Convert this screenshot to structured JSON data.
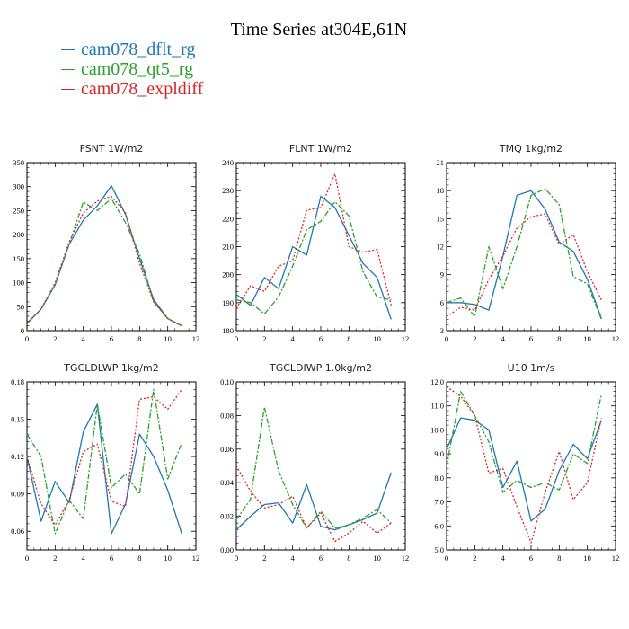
{
  "title": "Time Series at304E,61N",
  "legend": [
    {
      "name": "cam078_dflt_rg",
      "color": "#1f77b4"
    },
    {
      "name": "cam078_qt5_rg",
      "color": "#2ca02c"
    },
    {
      "name": "cam078_expldiff",
      "color": "#d62728"
    }
  ],
  "chart_data": [
    {
      "type": "line",
      "title": "FSNT  1W/m2",
      "x": [
        0,
        1,
        2,
        3,
        4,
        5,
        6,
        7,
        8,
        9,
        10,
        11
      ],
      "xlim": [
        0,
        12
      ],
      "xticks": [
        "0",
        "2",
        "4",
        "6",
        "8",
        "10",
        "12"
      ],
      "ylim": [
        0,
        350
      ],
      "yticks": [
        "0",
        "50",
        "100",
        "150",
        "200",
        "250",
        "300",
        "350"
      ],
      "series": [
        {
          "name": "cam078_dflt_rg",
          "values": [
            15,
            45,
            95,
            180,
            230,
            260,
            302,
            242,
            150,
            65,
            25,
            10
          ]
        },
        {
          "name": "cam078_qt5_rg",
          "values": [
            15,
            45,
            95,
            180,
            268,
            250,
            275,
            225,
            160,
            60,
            25,
            10
          ]
        },
        {
          "name": "cam078_expldiff",
          "values": [
            15,
            45,
            100,
            185,
            245,
            270,
            280,
            245,
            140,
            60,
            25,
            10
          ]
        }
      ]
    },
    {
      "type": "line",
      "title": "FLNT  1W/m2",
      "x": [
        0,
        1,
        2,
        3,
        4,
        5,
        6,
        7,
        8,
        9,
        10,
        11
      ],
      "xlim": [
        0,
        12
      ],
      "xticks": [
        "0",
        "2",
        "4",
        "6",
        "8",
        "10",
        "12"
      ],
      "ylim": [
        180,
        240
      ],
      "yticks": [
        "180",
        "190",
        "200",
        "210",
        "220",
        "230",
        "240"
      ],
      "series": [
        {
          "name": "cam078_dflt_rg",
          "values": [
            193,
            189,
            199,
            195,
            210,
            207,
            228,
            224,
            214,
            204,
            199,
            184
          ]
        },
        {
          "name": "cam078_qt5_rg",
          "values": [
            191,
            190,
            186,
            192,
            203,
            216,
            219,
            226,
            221,
            201,
            192,
            191
          ]
        },
        {
          "name": "cam078_expldiff",
          "values": [
            188,
            196,
            194,
            203,
            205,
            223,
            224,
            236,
            210,
            208,
            209,
            189
          ]
        }
      ]
    },
    {
      "type": "line",
      "title": "TMQ  1kg/m2",
      "x": [
        0,
        1,
        2,
        3,
        4,
        5,
        6,
        7,
        8,
        9,
        10,
        11
      ],
      "xlim": [
        0,
        12
      ],
      "xticks": [
        "0",
        "2",
        "4",
        "6",
        "8",
        "10",
        "12"
      ],
      "ylim": [
        3,
        21
      ],
      "yticks": [
        "3",
        "6",
        "9",
        "12",
        "15",
        "18",
        "21"
      ],
      "series": [
        {
          "name": "cam078_dflt_rg",
          "values": [
            6.0,
            6.0,
            5.8,
            5.2,
            11.0,
            17.5,
            18.0,
            16.0,
            12.5,
            11.5,
            8.5,
            4.3
          ]
        },
        {
          "name": "cam078_qt5_rg",
          "values": [
            6.0,
            6.5,
            4.5,
            12.0,
            7.5,
            12.0,
            17.5,
            18.2,
            16.5,
            8.8,
            8.0,
            4.2
          ]
        },
        {
          "name": "cam078_expldiff",
          "values": [
            4.5,
            5.5,
            5.2,
            8.5,
            11.0,
            14.0,
            15.2,
            15.5,
            12.2,
            13.3,
            9.3,
            6.3
          ]
        }
      ]
    },
    {
      "type": "line",
      "title": "TGCLDLWP  1kg/m2",
      "x": [
        0,
        1,
        2,
        3,
        4,
        5,
        6,
        7,
        8,
        9,
        10,
        11
      ],
      "xlim": [
        0,
        12
      ],
      "xticks": [
        "0",
        "2",
        "4",
        "6",
        "8",
        "10",
        "12"
      ],
      "ylim": [
        0.045,
        0.18
      ],
      "yticks": [
        "",
        "0.06",
        "0.09",
        "0.12",
        "0.15",
        "0.18"
      ],
      "series": [
        {
          "name": "cam078_dflt_rg",
          "values": [
            0.12,
            0.068,
            0.1,
            0.083,
            0.14,
            0.162,
            0.058,
            0.082,
            0.138,
            0.12,
            0.093,
            0.058
          ]
        },
        {
          "name": "cam078_qt5_rg",
          "values": [
            0.138,
            0.12,
            0.058,
            0.085,
            0.07,
            0.162,
            0.095,
            0.106,
            0.09,
            0.174,
            0.102,
            0.131
          ]
        },
        {
          "name": "cam078_expldiff",
          "values": [
            0.12,
            0.082,
            0.065,
            0.085,
            0.124,
            0.13,
            0.084,
            0.08,
            0.166,
            0.168,
            0.158,
            0.174
          ]
        }
      ]
    },
    {
      "type": "line",
      "title": "TGCLDIWP  1.0kg/m2",
      "x": [
        0,
        1,
        2,
        3,
        4,
        5,
        6,
        7,
        8,
        9,
        10,
        11
      ],
      "xlim": [
        0,
        12
      ],
      "xticks": [
        "0",
        "2",
        "4",
        "6",
        "8",
        "10",
        "12"
      ],
      "ylim": [
        0,
        0.1
      ],
      "yticks": [
        "0.00",
        "0.02",
        "0.04",
        "0.06",
        "0.08",
        "0.10"
      ],
      "series": [
        {
          "name": "cam078_dflt_rg",
          "values": [
            0.012,
            0.02,
            0.027,
            0.028,
            0.016,
            0.039,
            0.014,
            0.012,
            0.015,
            0.018,
            0.022,
            0.046
          ]
        },
        {
          "name": "cam078_qt5_rg",
          "values": [
            0.018,
            0.03,
            0.085,
            0.047,
            0.027,
            0.013,
            0.023,
            0.013,
            0.015,
            0.019,
            0.024,
            0.016
          ]
        },
        {
          "name": "cam078_expldiff",
          "values": [
            0.05,
            0.035,
            0.025,
            0.027,
            0.032,
            0.013,
            0.022,
            0.005,
            0.01,
            0.017,
            0.01,
            0.016
          ]
        }
      ]
    },
    {
      "type": "line",
      "title": "U10  1m/s",
      "x": [
        0,
        1,
        2,
        3,
        4,
        5,
        6,
        7,
        8,
        9,
        10,
        11
      ],
      "xlim": [
        0,
        12
      ],
      "xticks": [
        "0",
        "2",
        "4",
        "6",
        "8",
        "10",
        "12"
      ],
      "ylim": [
        5,
        12
      ],
      "yticks": [
        "5.0",
        "6.0",
        "7.0",
        "8.0",
        "9.0",
        "10.0",
        "11.0",
        "12.0"
      ],
      "series": [
        {
          "name": "cam078_dflt_rg",
          "values": [
            9.2,
            10.5,
            10.4,
            10.0,
            7.6,
            8.7,
            6.2,
            6.7,
            8.3,
            9.4,
            8.8,
            10.4
          ]
        },
        {
          "name": "cam078_qt5_rg",
          "values": [
            8.5,
            11.6,
            10.6,
            9.5,
            7.4,
            7.9,
            7.6,
            7.8,
            7.5,
            9.0,
            8.6,
            11.5
          ]
        },
        {
          "name": "cam078_expldiff",
          "values": [
            11.8,
            11.4,
            10.6,
            8.2,
            8.4,
            6.8,
            5.3,
            7.4,
            9.1,
            7.1,
            7.8,
            10.5
          ]
        }
      ]
    }
  ]
}
